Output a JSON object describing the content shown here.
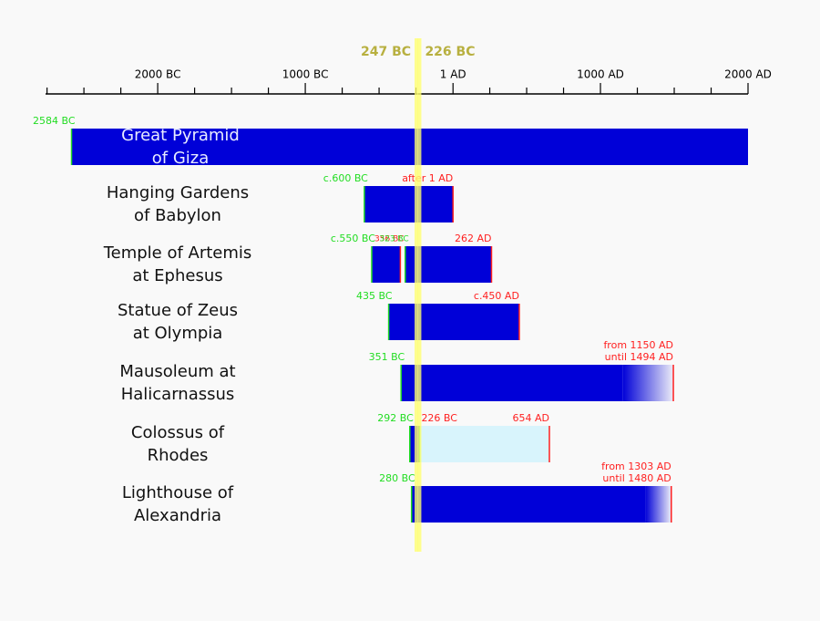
{
  "chart_data": {
    "type": "timeline",
    "xlim": [
      -2760,
      2000
    ],
    "xticks": [
      {
        "value": -2000,
        "label": "2000 BC"
      },
      {
        "value": -1000,
        "label": "1000 BC"
      },
      {
        "value": 1,
        "label": "1 AD"
      },
      {
        "value": 1000,
        "label": "1000 AD"
      },
      {
        "value": 2000,
        "label": "2000 AD"
      }
    ],
    "xminorticks": [
      -2750,
      -2500,
      -2250,
      -1750,
      -1500,
      -1250,
      -750,
      -500,
      -250,
      250,
      500,
      750,
      1250,
      1500,
      1750
    ],
    "markers": [
      {
        "value": -247,
        "label": "247 BC"
      },
      {
        "value": -226,
        "label": "226 BC"
      }
    ],
    "bar_color": "#0000d8",
    "light_color": "#d8f4fc",
    "start_color": "#22dd22",
    "end_color": "#ff2020",
    "marker_color": "#b8b040",
    "wonders": [
      {
        "name": [
          "Great Pyramid",
          "of Giza"
        ],
        "segments": [
          {
            "start": -2584,
            "end": 2000,
            "start_label": "2584 BC"
          }
        ]
      },
      {
        "name": [
          "Hanging Gardens",
          "of Babylon"
        ],
        "segments": [
          {
            "start": -600,
            "end": 1,
            "start_label": "c.600 BC",
            "end_label": "after 1 AD"
          }
        ]
      },
      {
        "name": [
          "Temple of Artemis",
          "at Ephesus"
        ],
        "segments": [
          {
            "start": -550,
            "end": -356,
            "start_label": "c.550 BC",
            "end_label": "356 BC"
          },
          {
            "start": -323,
            "end": 262,
            "start_label": "323 BC",
            "end_label": "262 AD"
          }
        ]
      },
      {
        "name": [
          "Statue of Zeus",
          "at Olympia"
        ],
        "segments": [
          {
            "start": -435,
            "end": 450,
            "start_label": "435 BC",
            "end_label": "c.450 AD"
          }
        ]
      },
      {
        "name": [
          "Mausoleum at",
          "Halicarnassus"
        ],
        "segments": [
          {
            "start": -351,
            "end": 1494,
            "fade_from": 1150,
            "start_label": "351 BC",
            "end_label": [
              "from 1150 AD",
              "until 1494 AD"
            ]
          }
        ]
      },
      {
        "name": [
          "Colossus of",
          "Rhodes"
        ],
        "segments": [
          {
            "start": -292,
            "end": -226,
            "start_label": "292 BC"
          },
          {
            "start": -226,
            "end": 654,
            "light": true,
            "start_label": "226 BC",
            "end_label": "654 AD"
          }
        ]
      },
      {
        "name": [
          "Lighthouse of",
          "Alexandria"
        ],
        "segments": [
          {
            "start": -280,
            "end": 1480,
            "fade_from": 1303,
            "start_label": "280 BC",
            "end_label": [
              "from 1303 AD",
              "until 1480 AD"
            ]
          }
        ]
      }
    ]
  }
}
